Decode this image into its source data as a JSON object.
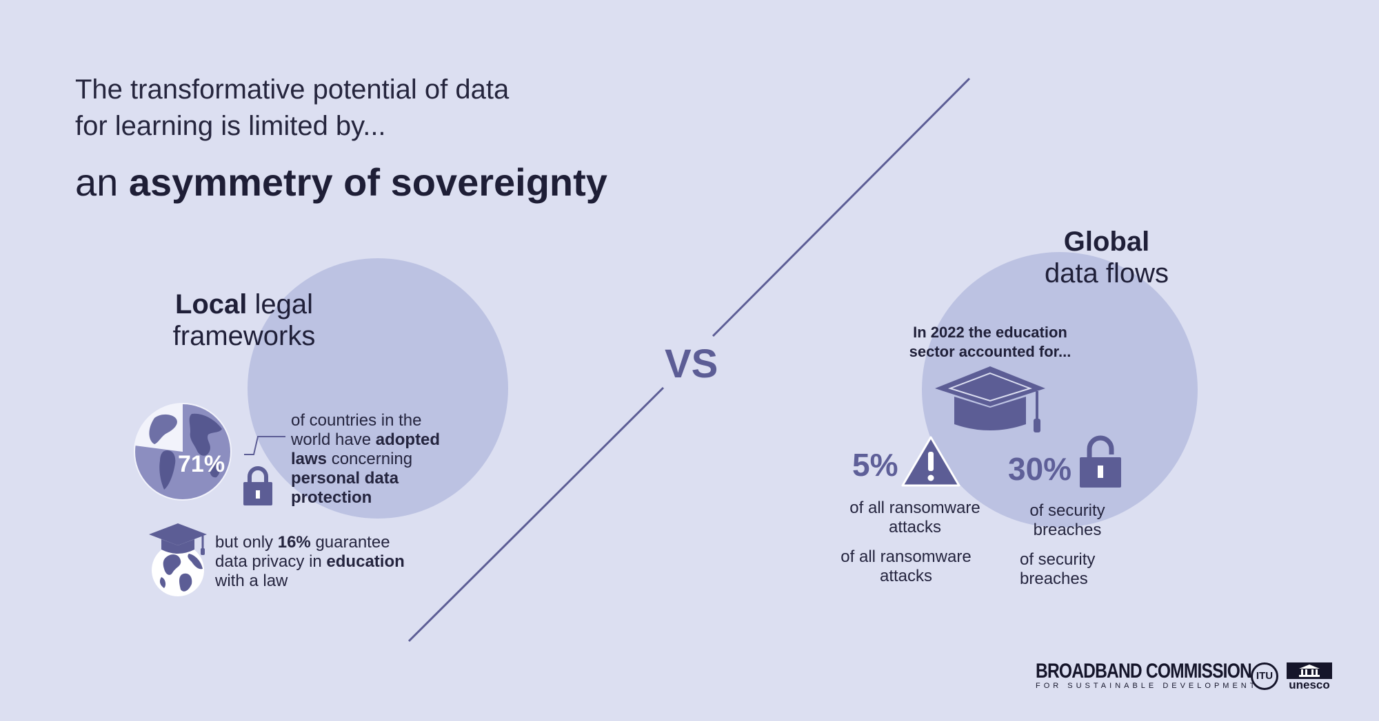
{
  "header": {
    "title": "The transformative potential of data for learning is limited by...",
    "subtitle_prefix": "an",
    "subtitle_bold": "asymmetry of sovereignty"
  },
  "vs_label": "VS",
  "local": {
    "heading_bold": "Local",
    "heading_rest": "legal",
    "heading_line2": "frameworks",
    "stat_percent": "71%",
    "stat_text_1": "of countries in the",
    "stat_text_2": "world have",
    "stat_text_bold_1": "adopted",
    "stat_text_bold_2": "laws",
    "stat_text_3": "concerning",
    "stat_text_bold_3": "personal data",
    "stat_text_bold_4": "protection",
    "second_text_1": "but only",
    "second_text_bold_1": "16%",
    "second_text_2": "guarantee",
    "second_text_3": "data privacy in",
    "second_text_bold_2": "education",
    "second_text_4": "with a law"
  },
  "global": {
    "heading_bold": "Global",
    "heading_line2": "data flows",
    "intro_line1": "In 2022 the education",
    "intro_line2": "sector accounted for...",
    "ransomware_percent": "5%",
    "ransomware_label_1": "of all ransomware",
    "ransomware_label_2": "attacks",
    "breach_percent": "30%",
    "breach_label_1": "of security",
    "breach_label_2": "breaches",
    "ransomware_label_dup_1": "of all ransomware",
    "ransomware_label_dup_2": "attacks",
    "breach_label_dup_1": "of security",
    "breach_label_dup_2": "breaches"
  },
  "footer": {
    "broadband_line1": "BROADBAND COMMISSION",
    "broadband_line2": "FOR SUSTAINABLE DEVELOPMENT",
    "itu_label": "ITU",
    "unesco_label": "unesco"
  },
  "colors": {
    "background": "#dcdff1",
    "circle": "#bcc2e2",
    "accent": "#5c5d95",
    "text": "#22223a"
  }
}
